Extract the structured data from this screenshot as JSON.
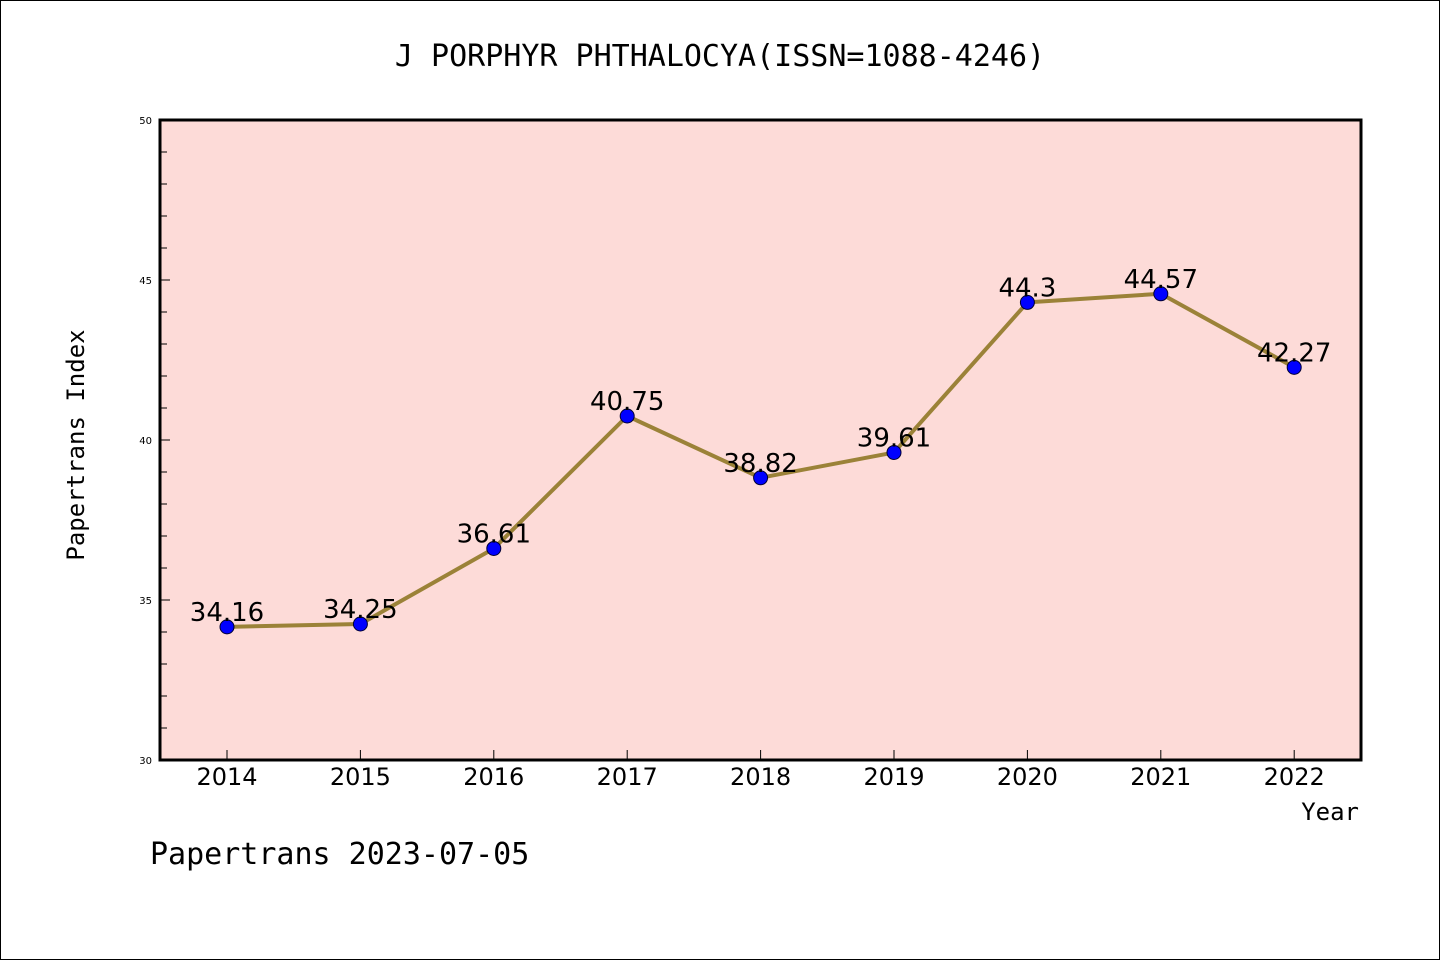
{
  "chart_data": {
    "type": "line",
    "title": "J PORPHYR PHTHALOCYA(ISSN=1088-4246)",
    "xlabel": "Year",
    "ylabel": "Papertrans Index",
    "categories": [
      "2014",
      "2015",
      "2016",
      "2017",
      "2018",
      "2019",
      "2020",
      "2021",
      "2022"
    ],
    "values": [
      34.16,
      34.25,
      36.61,
      40.75,
      38.82,
      39.61,
      44.3,
      44.57,
      42.27
    ],
    "data_labels": [
      "34.16",
      "34.25",
      "36.61",
      "40.75",
      "38.82",
      "39.61",
      "44.3",
      "44.57",
      "42.27"
    ],
    "ylim": [
      30,
      50
    ],
    "yticks": [
      "30",
      "35",
      "40",
      "45",
      "50"
    ],
    "grid": false,
    "colors": {
      "plot_background": "#fddbd8",
      "line": "#9b8238",
      "marker": "#0000ff"
    }
  },
  "footer": {
    "text": "Papertrans 2023-07-05"
  }
}
